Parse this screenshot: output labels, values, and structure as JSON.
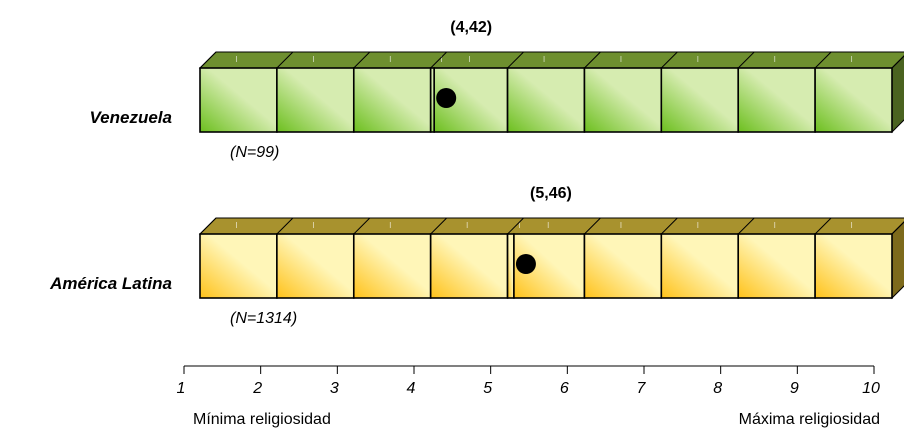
{
  "chart_data": {
    "type": "scatter",
    "series": [
      {
        "name": "Venezuela",
        "n_label": "(N=99)",
        "value": 4.42,
        "value_label": "(4,42)",
        "palette": "green"
      },
      {
        "name": "América Latina",
        "n_label": "(N=1314)",
        "value": 5.46,
        "value_label": "(5,46)",
        "palette": "yellow"
      }
    ],
    "x": {
      "min": 1,
      "max": 10,
      "ticks": [
        1,
        2,
        3,
        4,
        5,
        6,
        7,
        8,
        9,
        10
      ]
    },
    "low_label": "Mínima religiosidad",
    "high_label": "Máxima religiosidad"
  },
  "colors": {
    "green": {
      "top": "#6e8f2f",
      "side": "#4a6320",
      "light": "#d6ecb0",
      "dark": "#6cbf1e"
    },
    "yellow": {
      "top": "#a8922e",
      "side": "#7d6a1c",
      "light": "#fff6b8",
      "dark": "#ffc21a"
    },
    "dot": "#000000"
  }
}
